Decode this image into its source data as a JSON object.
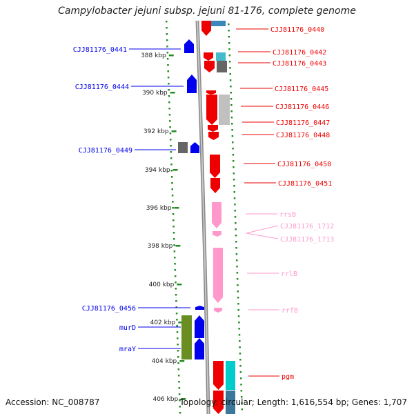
{
  "title": "Campylobacter jejuni subsp. jejuni 81-176, complete genome",
  "footer": {
    "accession": "Accession: NC_008787",
    "topology": "Topology: circular; Length: 1,616,554 bp; Genes: 1,707"
  },
  "colors": {
    "forward_strand": "#0000ee",
    "reverse_strand": "#ee0000",
    "rna": "#ff99cc",
    "gray": "#888888",
    "olive": "#6b8e23",
    "cyan": "#00cccc",
    "tick": "#228B22",
    "backbone": "#999999"
  },
  "axis_ticks": [
    "388 kbp",
    "390 kbp",
    "392 kbp",
    "394 kbp",
    "396 kbp",
    "398 kbp",
    "400 kbp",
    "402 kbp",
    "404 kbp",
    "406 kbp"
  ],
  "labels_left": [
    "CJJ81176_0441",
    "CJJ81176_0444",
    "CJJ81176_0449",
    "CJJ81176_0456",
    "murD",
    "mraY"
  ],
  "labels_right": [
    "CJJ81176_0440",
    "CJJ81176_0442",
    "CJJ81176_0443",
    "CJJ81176_0445",
    "CJJ81176_0446",
    "CJJ81176_0447",
    "CJJ81176_0448",
    "CJJ81176_0450",
    "CJJ81176_0451",
    "rrsB",
    "CJJ81176_1712",
    "CJJ81176_1713",
    "rrlB",
    "rrfB",
    "pgm"
  ]
}
